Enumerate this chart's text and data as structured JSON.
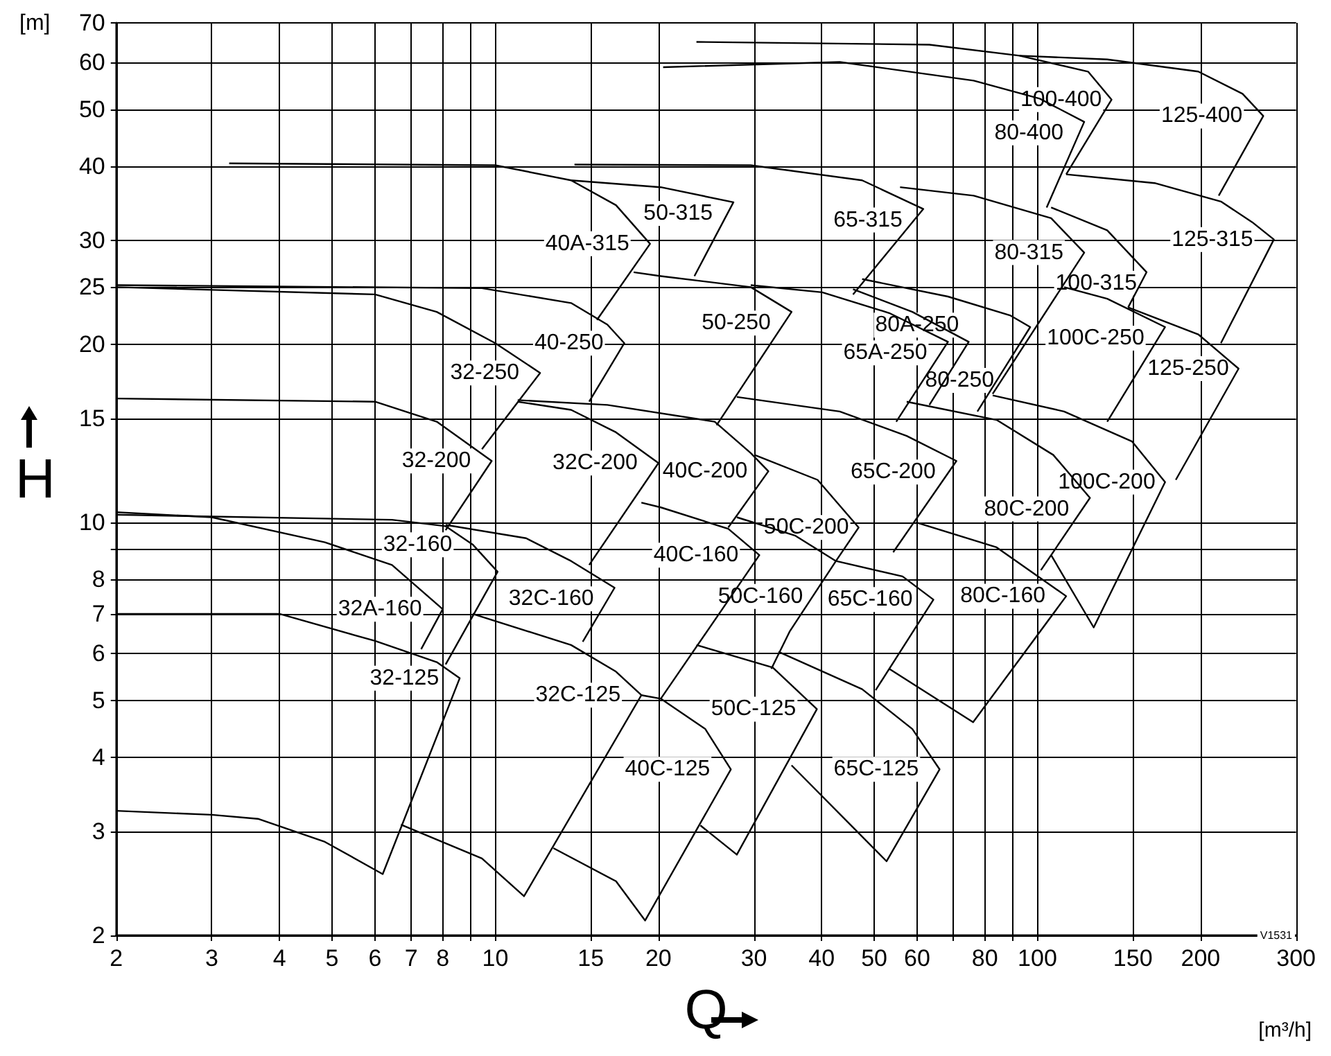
{
  "chart_data": {
    "type": "line",
    "xlabel": "Q",
    "ylabel": "H",
    "log": "xy",
    "grid": true,
    "legend": false,
    "marker": "none",
    "line_style": "solid",
    "xlim": [
      2,
      300
    ],
    "ylim": [
      2,
      70
    ],
    "xticks": [
      2,
      3,
      4,
      5,
      6,
      7,
      8,
      {
        "value": 9,
        "label": null
      },
      10,
      15,
      20,
      30,
      40,
      50,
      60,
      {
        "value": 70,
        "label": null
      },
      80,
      {
        "value": 90,
        "label": null
      },
      100,
      150,
      200,
      300
    ],
    "yticks": [
      2,
      3,
      4,
      5,
      6,
      7,
      8,
      {
        "value": 9,
        "label": null
      },
      10,
      15,
      20,
      25,
      30,
      40,
      50,
      60,
      70
    ],
    "annotations": [
      "[m]",
      "[m³/h]",
      "V1531"
    ],
    "series": [
      {
        "name": "32-125",
        "color": "#000000",
        "x": [
          2,
          4,
          6.0,
          7.8,
          8.6,
          6.2,
          4.85,
          3.65,
          3.0,
          2
        ],
        "values": [
          7.0,
          7.0,
          6.3,
          5.8,
          5.45,
          2.54,
          2.88,
          3.15,
          3.2,
          3.25
        ]
      },
      {
        "name": "32A-160",
        "color": "#000000",
        "x": [
          2,
          3.0,
          4.85,
          6.45,
          8.0,
          7.3
        ],
        "values": [
          10.4,
          10.2,
          9.25,
          8.47,
          7.13,
          6.1
        ]
      },
      {
        "name": "32-160",
        "color": "#000000",
        "x": [
          2,
          6.45,
          8.1,
          9.1,
          10.1,
          8.1
        ],
        "values": [
          10.3,
          10.1,
          9.85,
          9.16,
          8.25,
          5.75
        ]
      },
      {
        "name": "32-200",
        "color": "#000000",
        "x": [
          2,
          6.0,
          7.8,
          9.85,
          8.1
        ],
        "values": [
          16.2,
          16.0,
          14.8,
          12.7,
          9.7
        ]
      },
      {
        "name": "32-250",
        "color": "#000000",
        "x": [
          2,
          6.0,
          7.8,
          10,
          12.1,
          9.45
        ],
        "values": [
          25,
          24.3,
          22.7,
          20.1,
          17.9,
          13.3
        ]
      },
      {
        "name": "40A-315",
        "color": "#000000",
        "x": [
          3.23,
          10,
          13.8,
          16.7,
          19.3,
          15.4
        ],
        "values": [
          40.5,
          40.2,
          37.9,
          34.4,
          29.6,
          22.0
        ]
      },
      {
        "name": "40-250",
        "color": "#000000",
        "x": [
          2,
          9.45,
          13.8,
          16.1,
          17.3,
          14.9
        ],
        "values": [
          25.2,
          24.9,
          23.5,
          21.6,
          20.1,
          16.0
        ]
      },
      {
        "name": "32C-200",
        "color": "#000000",
        "x": [
          11.0,
          13.8,
          16.7,
          20.0,
          14.9
        ],
        "values": [
          16.0,
          15.5,
          14.2,
          12.6,
          8.47
        ]
      },
      {
        "name": "32C-160",
        "color": "#000000",
        "x": [
          8.1,
          11.4,
          13.8,
          16.6,
          14.5
        ],
        "values": [
          9.9,
          9.4,
          8.6,
          7.75,
          6.28
        ]
      },
      {
        "name": "32C-125",
        "color": "#000000",
        "x": [
          9.08,
          13.8,
          16.7,
          18.6,
          11.3,
          9.45,
          6.7
        ],
        "values": [
          7.0,
          6.2,
          5.59,
          5.1,
          2.33,
          2.7,
          3.08
        ]
      },
      {
        "name": "40C-125",
        "color": "#000000",
        "x": [
          18.6,
          20.2,
          24.4,
          27.2,
          18.9,
          16.7,
          12.8
        ],
        "values": [
          5.1,
          5.03,
          4.47,
          3.82,
          2.12,
          2.47,
          2.81
        ]
      },
      {
        "name": "40C-160",
        "color": "#000000",
        "x": [
          18.6,
          20.2,
          26.9,
          30.7,
          20.2
        ],
        "values": [
          10.8,
          10.6,
          9.75,
          8.8,
          5.03
        ]
      },
      {
        "name": "40C-200",
        "color": "#000000",
        "x": [
          11.0,
          16.1,
          25.4,
          29.6,
          31.9,
          26.9
        ],
        "values": [
          16.1,
          15.8,
          14.8,
          13.1,
          12.2,
          9.8
        ]
      },
      {
        "name": "50-250",
        "color": "#000000",
        "x": [
          18,
          20.2,
          29.6,
          35.2,
          25.6
        ],
        "values": [
          26.5,
          26.1,
          25.0,
          22.7,
          14.6
        ]
      },
      {
        "name": "50-315",
        "color": "#000000",
        "x": [
          13.8,
          20.2,
          27.5,
          23.3
        ],
        "values": [
          37.9,
          36.9,
          34.8,
          26.1
        ]
      },
      {
        "name": "65-315",
        "color": "#000000",
        "x": [
          14,
          29.6,
          47.5,
          61.6,
          45.7
        ],
        "values": [
          40.3,
          40.2,
          37.9,
          33.9,
          24.3
        ]
      },
      {
        "name": "65A-250",
        "color": "#000000",
        "x": [
          29.6,
          40.1,
          53.3,
          68.4,
          54.9
        ],
        "values": [
          25.2,
          24.5,
          22.6,
          20.2,
          14.8
        ]
      },
      {
        "name": "80A-250",
        "color": "#000000",
        "x": [
          45.7,
          58.8,
          74.7,
          63.2
        ],
        "values": [
          24.8,
          22.7,
          20.2,
          15.8
        ]
      },
      {
        "name": "80-250",
        "color": "#000000",
        "x": [
          47.5,
          68.4,
          89,
          97,
          77.5
        ],
        "values": [
          25.8,
          24.1,
          22.4,
          21.4,
          15.4
        ]
      },
      {
        "name": "80-315",
        "color": "#000000",
        "x": [
          55.8,
          76.3,
          106,
          122,
          82.7
        ],
        "values": [
          36.9,
          35.7,
          32.7,
          28.6,
          16.5
        ]
      },
      {
        "name": "80-400",
        "color": "#000000",
        "x": [
          20.4,
          43.2,
          76.3,
          101,
          122,
          104
        ],
        "values": [
          58.9,
          60.1,
          55.9,
          52.1,
          47.6,
          34.1
        ]
      },
      {
        "name": "100-400",
        "color": "#000000",
        "x": [
          23.5,
          63.2,
          92.7,
          124,
          137,
          113
        ],
        "values": [
          65,
          64.3,
          61.6,
          57.9,
          51.9,
          38.8
        ]
      },
      {
        "name": "125-400",
        "color": "#000000",
        "x": [
          92.7,
          134.5,
          198,
          239,
          261,
          216
        ],
        "values": [
          61.6,
          60.7,
          57.9,
          53.1,
          48.7,
          35.7
        ]
      },
      {
        "name": "100-315",
        "color": "#000000",
        "x": [
          106,
          134.5,
          159,
          147
        ],
        "values": [
          34.1,
          31.2,
          26.5,
          23.1
        ]
      },
      {
        "name": "125-315",
        "color": "#000000",
        "x": [
          113,
          164.5,
          218,
          249,
          273,
          218
        ],
        "values": [
          38.8,
          37.5,
          34.9,
          32.2,
          30.1,
          20.1
        ]
      },
      {
        "name": "100C-250",
        "color": "#000000",
        "x": [
          112,
          134.5,
          172,
          134.5
        ],
        "values": [
          25,
          23.9,
          21.4,
          14.8
        ]
      },
      {
        "name": "125-250",
        "color": "#000000",
        "x": [
          147,
          198,
          235,
          180
        ],
        "values": [
          23.1,
          20.8,
          18.2,
          11.8
        ]
      },
      {
        "name": "100C-200",
        "color": "#000000",
        "x": [
          82.7,
          112,
          149.5,
          172,
          127,
          106
        ],
        "values": [
          16.4,
          15.4,
          13.7,
          11.7,
          6.64,
          8.8
        ]
      },
      {
        "name": "80C-200",
        "color": "#000000",
        "x": [
          57.4,
          84.1,
          107,
          125,
          101.5
        ],
        "values": [
          16.0,
          14.9,
          13.0,
          11.0,
          8.3
        ]
      },
      {
        "name": "65C-200",
        "color": "#000000",
        "x": [
          27.9,
          43.2,
          57.4,
          70.9,
          54.2
        ],
        "values": [
          16.3,
          15.4,
          14.0,
          12.7,
          8.9
        ]
      },
      {
        "name": "50C-200",
        "color": "#000000",
        "x": [
          30.1,
          39.3,
          46.8,
          42.5
        ],
        "values": [
          13.0,
          11.8,
          9.8,
          8.6
        ]
      },
      {
        "name": "50C-160",
        "color": "#000000",
        "x": [
          27.9,
          35.7,
          42.5,
          34.9,
          32.3
        ],
        "values": [
          10.2,
          9.5,
          8.6,
          6.53,
          5.65
        ]
      },
      {
        "name": "65C-160",
        "color": "#000000",
        "x": [
          42.5,
          56.4,
          64.3,
          50.3
        ],
        "values": [
          8.6,
          8.1,
          7.4,
          5.2
        ]
      },
      {
        "name": "80C-160",
        "color": "#000000",
        "x": [
          59.7,
          84.1,
          113,
          76.1,
          53.3
        ],
        "values": [
          10.0,
          9.07,
          7.5,
          4.59,
          5.65
        ]
      },
      {
        "name": "50C-125",
        "color": "#000000",
        "x": [
          23.5,
          32.5,
          39.2,
          27.9,
          23.9
        ],
        "values": [
          6.2,
          5.68,
          4.83,
          2.74,
          3.07
        ]
      },
      {
        "name": "65C-125",
        "color": "#000000",
        "x": [
          33.3,
          47.5,
          58.8,
          66,
          52.7,
          35.2
        ],
        "values": [
          6.04,
          5.22,
          4.47,
          3.82,
          2.67,
          3.88
        ]
      }
    ]
  }
}
